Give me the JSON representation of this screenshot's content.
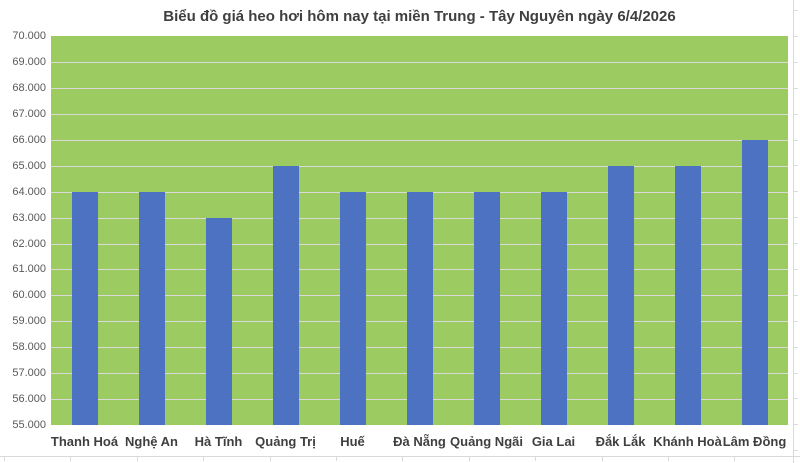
{
  "chart_data": {
    "type": "bar",
    "title": "Biểu đồ giá heo hơi hôm nay tại miền Trung - Tây Nguyên ngày 6/4/2026",
    "categories": [
      "Thanh Hoá",
      "Nghệ An",
      "Hà Tĩnh",
      "Quảng Trị",
      "Huế",
      "Đà Nẵng",
      "Quảng Ngãi",
      "Gia Lai",
      "Đắk Lắk",
      "Khánh Hoà",
      "Lâm Đồng"
    ],
    "values": [
      64000,
      64000,
      63000,
      65000,
      64000,
      64000,
      64000,
      64000,
      65000,
      65000,
      66000
    ],
    "xlabel": "",
    "ylabel": "",
    "ylim": [
      55000,
      70000
    ],
    "ytick_step": 1000,
    "ytick_labels": [
      "70.000",
      "69.000",
      "68.000",
      "67.000",
      "66.000",
      "65.000",
      "64.000",
      "63.000",
      "62.000",
      "61.000",
      "60.000",
      "59.000",
      "58.000",
      "57.000",
      "56.000",
      "55.000"
    ],
    "grid": true,
    "legend": "none",
    "colors": {
      "bar": "#4c72c1",
      "plot_background": "#9ccb62",
      "gridline": "#d9d9d9",
      "title_text": "#3f3f3f",
      "axis_text": "#595959",
      "category_text": "#3f3f3f"
    }
  }
}
